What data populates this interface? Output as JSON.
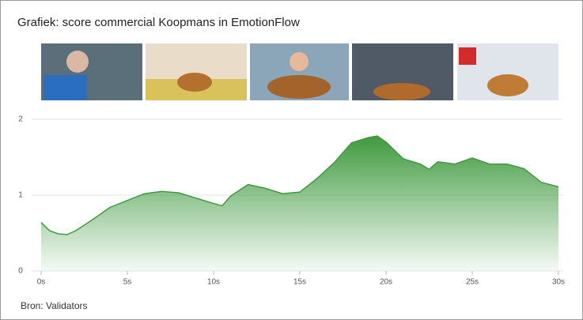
{
  "chart_data": {
    "type": "area",
    "title": "Grafiek: score commercial Koopmans in EmotionFlow",
    "source": "Bron: Validators",
    "x": [
      0,
      0.5,
      1,
      1.5,
      2,
      3,
      4,
      5,
      6,
      7,
      8,
      9,
      10,
      10.5,
      11,
      12,
      13,
      14,
      15,
      16,
      17,
      18,
      19,
      19.5,
      20,
      21,
      22,
      22.5,
      23,
      24,
      25,
      26,
      27,
      28,
      29,
      30
    ],
    "series": [
      {
        "color": "#3f9a3f",
        "values": [
          0.64,
          0.53,
          0.49,
          0.48,
          0.53,
          0.68,
          0.84,
          0.93,
          1.02,
          1.05,
          1.03,
          0.96,
          0.89,
          0.86,
          0.99,
          1.14,
          1.09,
          1.02,
          1.04,
          1.22,
          1.43,
          1.69,
          1.76,
          1.78,
          1.7,
          1.48,
          1.41,
          1.34,
          1.44,
          1.41,
          1.49,
          1.41,
          1.41,
          1.35,
          1.17,
          1.11
        ]
      }
    ],
    "xlim": [
      0,
      30
    ],
    "ylim": [
      0,
      2
    ],
    "xticks": [
      {
        "value": 0,
        "label": "0s"
      },
      {
        "value": 5,
        "label": "5s"
      },
      {
        "value": 10,
        "label": "10s"
      },
      {
        "value": 15,
        "label": "15s"
      },
      {
        "value": 20,
        "label": "20s"
      },
      {
        "value": 25,
        "label": "25s"
      },
      {
        "value": 30,
        "label": "30s"
      }
    ],
    "yticks": [
      0,
      1,
      2
    ],
    "grid": true
  }
}
